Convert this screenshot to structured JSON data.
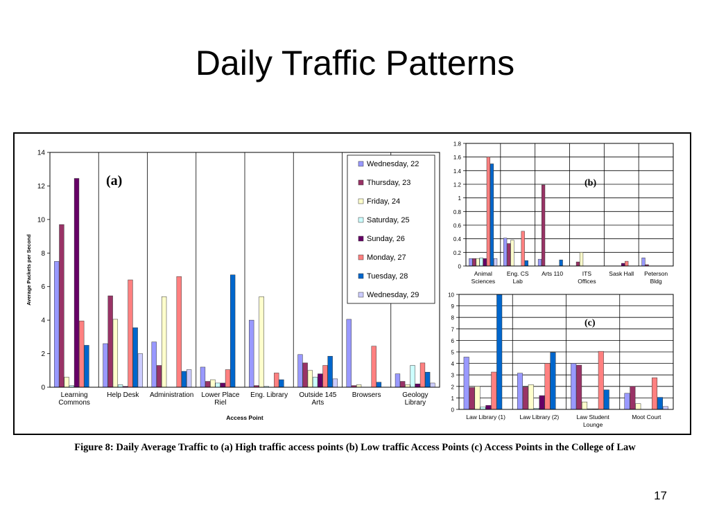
{
  "slide": {
    "title": "Daily Traffic Patterns",
    "caption": "Figure 8: Daily Average Traffic to (a) High traffic access points (b) Low traffic Access Points (c) Access Points in the College of Law",
    "page_number": "17"
  },
  "colors": [
    "#9999ff",
    "#993366",
    "#ffffcc",
    "#ccffff",
    "#660066",
    "#ff8080",
    "#0066cc",
    "#ccccff"
  ],
  "chart_data": [
    {
      "id": "a",
      "type": "bar",
      "panel_label": "(a)",
      "title": "",
      "xlabel": "Access Point",
      "ylabel": "Average Packets per Second",
      "ylim": [
        0,
        14
      ],
      "yticks": [
        0,
        2,
        4,
        6,
        8,
        10,
        12,
        14
      ],
      "grid": "vertical category separators",
      "legend": "top-right",
      "categories": [
        [
          "Learning",
          "Commons"
        ],
        [
          "Help Desk"
        ],
        [
          "Administration"
        ],
        [
          "Lower Place",
          "Riel"
        ],
        [
          "Eng. Library"
        ],
        [
          "Outside 145",
          "Arts"
        ],
        [
          "Browsers"
        ],
        [
          "Geology",
          "Library"
        ]
      ],
      "series": [
        {
          "name": "Wednesday, 22",
          "values": [
            7.5,
            2.6,
            2.7,
            1.2,
            4.0,
            1.95,
            4.05,
            0.8
          ]
        },
        {
          "name": "Thursday, 23",
          "values": [
            9.7,
            5.45,
            1.3,
            0.35,
            0.1,
            1.45,
            0.1,
            0.35
          ]
        },
        {
          "name": "Friday, 24",
          "values": [
            0.6,
            4.05,
            5.4,
            0.45,
            5.4,
            1.0,
            0.15,
            0.15
          ]
        },
        {
          "name": "Saturday, 25",
          "values": [
            0.1,
            0.15,
            0.0,
            0.25,
            0.05,
            0.6,
            0.0,
            1.3
          ]
        },
        {
          "name": "Sunday, 26",
          "values": [
            12.45,
            0.05,
            0.0,
            0.25,
            0.0,
            0.8,
            0.0,
            0.2
          ]
        },
        {
          "name": "Monday, 27",
          "values": [
            3.95,
            6.4,
            6.6,
            1.05,
            0.85,
            1.3,
            2.45,
            1.45
          ]
        },
        {
          "name": "Tuesday, 28",
          "values": [
            2.5,
            3.55,
            0.95,
            6.7,
            0.45,
            1.85,
            0.3,
            0.9
          ]
        },
        {
          "name": "Wednesday, 29",
          "values": [
            0.0,
            2.0,
            1.05,
            0.0,
            0.0,
            0.5,
            0.0,
            0.25
          ]
        }
      ]
    },
    {
      "id": "b",
      "type": "bar",
      "panel_label": "(b)",
      "title": "",
      "ylim": [
        0,
        1.8
      ],
      "yticks": [
        0,
        0.2,
        0.4,
        0.6,
        0.8,
        1,
        1.2,
        1.4,
        1.6,
        1.8
      ],
      "grid": "horizontal gridlines and category separators",
      "categories": [
        [
          "Animal",
          "Sciences"
        ],
        [
          "Eng. CS",
          "Lab"
        ],
        [
          "Arts 110"
        ],
        [
          "ITS",
          "Offices"
        ],
        [
          "Sask Hall"
        ],
        [
          "Peterson",
          "Bldg"
        ]
      ],
      "series": [
        {
          "name": "Wednesday, 22",
          "values": [
            0.11,
            0.41,
            0.1,
            0.0,
            0.0,
            0.12
          ]
        },
        {
          "name": "Thursday, 23",
          "values": [
            0.11,
            0.33,
            1.19,
            0.06,
            0.0,
            0.02
          ]
        },
        {
          "name": "Friday, 24",
          "values": [
            0.11,
            0.38,
            0.0,
            0.2,
            0.0,
            0.0
          ]
        },
        {
          "name": "Saturday, 25",
          "values": [
            0.12,
            0.0,
            0.0,
            0.0,
            0.0,
            0.0
          ]
        },
        {
          "name": "Sunday, 26",
          "values": [
            0.11,
            0.0,
            0.0,
            0.0,
            0.04,
            0.0
          ]
        },
        {
          "name": "Monday, 27",
          "values": [
            1.6,
            0.51,
            0.0,
            0.0,
            0.07,
            0.0
          ]
        },
        {
          "name": "Tuesday, 28",
          "values": [
            1.5,
            0.08,
            0.09,
            0.0,
            0.0,
            0.0
          ]
        },
        {
          "name": "Wednesday, 29",
          "values": [
            0.11,
            0.0,
            0.0,
            0.0,
            0.0,
            0.0
          ]
        }
      ]
    },
    {
      "id": "c",
      "type": "bar",
      "panel_label": "(c)",
      "title": "",
      "ylim": [
        0,
        10
      ],
      "yticks": [
        0,
        1,
        2,
        3,
        4,
        5,
        6,
        7,
        8,
        9,
        10
      ],
      "grid": "horizontal gridlines and category separators",
      "categories": [
        [
          "Law Library (1)"
        ],
        [
          "Law Library (2)"
        ],
        [
          "Law Student",
          "Lounge"
        ],
        [
          "Moot Court"
        ]
      ],
      "series": [
        {
          "name": "Wednesday, 22",
          "values": [
            4.55,
            3.15,
            4.0,
            1.4
          ]
        },
        {
          "name": "Thursday, 23",
          "values": [
            1.9,
            1.95,
            3.85,
            2.0
          ]
        },
        {
          "name": "Friday, 24",
          "values": [
            2.0,
            2.15,
            0.65,
            0.5
          ]
        },
        {
          "name": "Saturday, 25",
          "values": [
            0.2,
            0.1,
            0.05,
            0.0
          ]
        },
        {
          "name": "Sunday, 26",
          "values": [
            0.35,
            1.2,
            0.05,
            0.0
          ]
        },
        {
          "name": "Monday, 27",
          "values": [
            3.25,
            4.0,
            5.05,
            2.75
          ]
        },
        {
          "name": "Tuesday, 28",
          "values": [
            10.0,
            4.95,
            1.7,
            1.05
          ]
        },
        {
          "name": "Wednesday, 29",
          "values": [
            0.0,
            0.0,
            0.0,
            0.25
          ]
        }
      ]
    }
  ]
}
